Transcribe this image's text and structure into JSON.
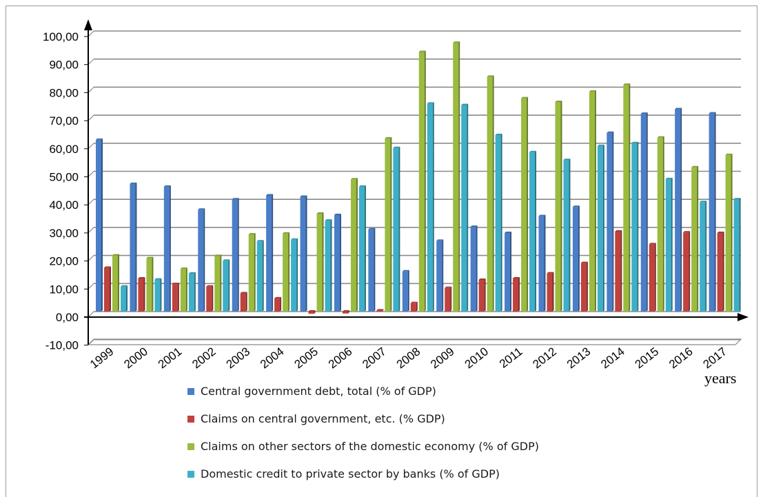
{
  "chart_data": {
    "type": "bar",
    "title": "",
    "xlabel": "years",
    "ylabel": "",
    "ylim": [
      -10,
      100
    ],
    "yticks": [
      "100,00",
      "90,00",
      "80,00",
      "70,00",
      "60,00",
      "50,00",
      "40,00",
      "30,00",
      "20,00",
      "10,00",
      "0,00",
      "-10,00"
    ],
    "grid": true,
    "legend_position": "bottom",
    "categories": [
      "1999",
      "2000",
      "2001",
      "2002",
      "2003",
      "2004",
      "2005",
      "2006",
      "2007",
      "2008",
      "2009",
      "2010",
      "2011",
      "2012",
      "2013",
      "2014",
      "2015",
      "2016",
      "2017"
    ],
    "series": [
      {
        "name": "Central government debt, total (% of GDP)",
        "color": "#4a7ec8",
        "values": [
          61.2,
          45.5,
          44.5,
          36.3,
          40.0,
          41.4,
          40.9,
          34.4,
          29.3,
          14.3,
          25.2,
          30.2,
          28.0,
          34.0,
          37.3,
          63.7,
          70.5,
          72.1,
          70.6
        ]
      },
      {
        "name": "Claims on central government, etc. (% GDP)",
        "color": "#c0423e",
        "values": [
          15.6,
          11.8,
          9.8,
          8.9,
          6.5,
          4.7,
          -0.8,
          -0.7,
          0.4,
          3.0,
          8.4,
          11.3,
          11.8,
          13.6,
          17.3,
          28.5,
          24.0,
          28.2,
          28.0
        ]
      },
      {
        "name": "Claims on other sectors of the domestic economy (% of GDP)",
        "color": "#9bbb3f",
        "values": [
          20.0,
          19.0,
          15.2,
          19.8,
          27.5,
          27.8,
          34.9,
          47.1,
          61.7,
          92.5,
          95.8,
          83.7,
          76.0,
          74.7,
          78.4,
          80.8,
          62.0,
          51.4,
          55.8
        ]
      },
      {
        "name": "Domestic credit to private sector by banks (% of GDP)",
        "color": "#3eafc8",
        "values": [
          8.9,
          11.4,
          13.5,
          18.1,
          25.0,
          25.6,
          32.4,
          44.5,
          58.3,
          74.1,
          73.6,
          62.9,
          56.8,
          54.0,
          59.0,
          60.0,
          47.2,
          39.0,
          40.0
        ]
      }
    ]
  }
}
